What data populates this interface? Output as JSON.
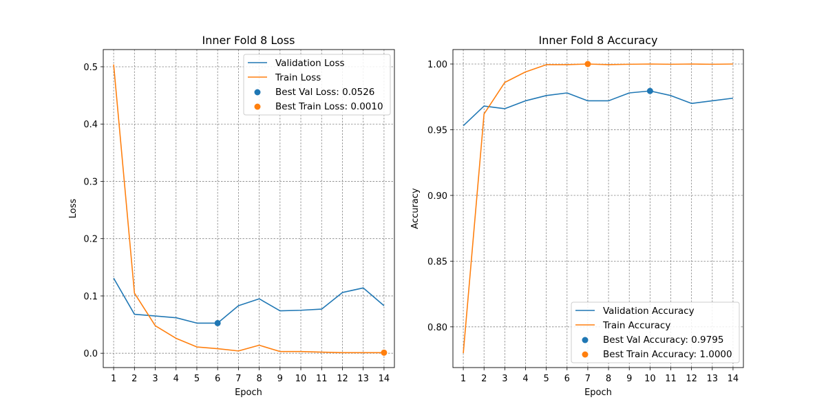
{
  "colors": {
    "validation": "#1f77b4",
    "train": "#ff7f0e",
    "grid": "#808080"
  },
  "chart_data": [
    {
      "type": "line",
      "title": "Inner Fold 8 Loss",
      "xlabel": "Epoch",
      "ylabel": "Loss",
      "x": [
        1,
        2,
        3,
        4,
        5,
        6,
        7,
        8,
        9,
        10,
        11,
        12,
        13,
        14
      ],
      "xlim": [
        0.5,
        14.5
      ],
      "ylim": [
        -0.025,
        0.53
      ],
      "yticks": [
        0.0,
        0.1,
        0.2,
        0.3,
        0.4,
        0.5
      ],
      "ytick_labels": [
        "0.0",
        "0.1",
        "0.2",
        "0.3",
        "0.4",
        "0.5"
      ],
      "grid": true,
      "legend_position": "top-right",
      "series": [
        {
          "name": "Validation Loss",
          "color_key": "validation",
          "values": [
            0.131,
            0.068,
            0.065,
            0.062,
            0.0526,
            0.0526,
            0.083,
            0.095,
            0.074,
            0.075,
            0.077,
            0.106,
            0.114,
            0.083
          ]
        },
        {
          "name": "Train Loss",
          "color_key": "train",
          "values": [
            0.504,
            0.105,
            0.048,
            0.026,
            0.011,
            0.008,
            0.004,
            0.014,
            0.003,
            0.003,
            0.002,
            0.001,
            0.001,
            0.001
          ]
        }
      ],
      "best_points": [
        {
          "label": "Best Val Loss: 0.0526",
          "color_key": "validation",
          "x": 6,
          "y": 0.0526
        },
        {
          "label": "Best Train Loss: 0.0010",
          "color_key": "train",
          "x": 14,
          "y": 0.001
        }
      ]
    },
    {
      "type": "line",
      "title": "Inner Fold 8 Accuracy",
      "xlabel": "Epoch",
      "ylabel": "Accuracy",
      "x": [
        1,
        2,
        3,
        4,
        5,
        6,
        7,
        8,
        9,
        10,
        11,
        12,
        13,
        14
      ],
      "xlim": [
        0.5,
        14.5
      ],
      "ylim": [
        0.769,
        1.011
      ],
      "yticks": [
        0.8,
        0.85,
        0.9,
        0.95,
        1.0
      ],
      "ytick_labels": [
        "0.80",
        "0.85",
        "0.90",
        "0.95",
        "1.00"
      ],
      "grid": true,
      "legend_position": "bottom-right",
      "series": [
        {
          "name": "Validation Accuracy",
          "color_key": "validation",
          "values": [
            0.953,
            0.968,
            0.966,
            0.972,
            0.976,
            0.978,
            0.972,
            0.972,
            0.978,
            0.9795,
            0.976,
            0.97,
            0.972,
            0.974
          ]
        },
        {
          "name": "Train Accuracy",
          "color_key": "train",
          "values": [
            0.78,
            0.962,
            0.986,
            0.994,
            0.9995,
            0.9995,
            1.0,
            0.9995,
            0.9998,
            1.0,
            0.9998,
            1.0,
            0.9998,
            1.0
          ]
        }
      ],
      "best_points": [
        {
          "label": "Best Val Accuracy: 0.9795",
          "color_key": "validation",
          "x": 10,
          "y": 0.9795
        },
        {
          "label": "Best Train Accuracy: 1.0000",
          "color_key": "train",
          "x": 7,
          "y": 1.0
        }
      ]
    }
  ]
}
